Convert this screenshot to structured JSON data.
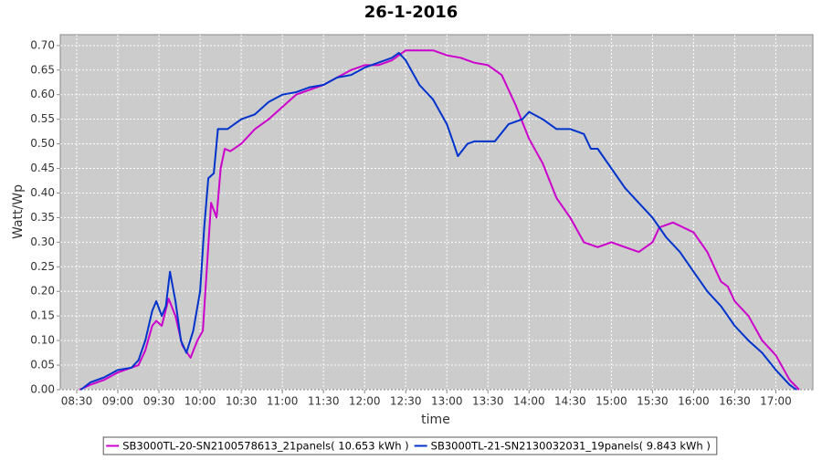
{
  "chart_data": {
    "type": "line",
    "title": "26-1-2016",
    "x_label": "time",
    "y_label": "Watt/Wp",
    "xlim": [
      "08:18",
      "17:27"
    ],
    "ylim": [
      0,
      0.722
    ],
    "xticks": [
      "08:30",
      "09:00",
      "09:30",
      "10:00",
      "10:30",
      "11:00",
      "11:30",
      "12:00",
      "12:30",
      "13:00",
      "13:30",
      "14:00",
      "14:30",
      "15:00",
      "15:30",
      "16:00",
      "16:30",
      "17:00"
    ],
    "yticks": [
      {
        "value": 0,
        "label": "0.00"
      },
      {
        "value": 0.05,
        "label": "0.05"
      },
      {
        "value": 0.1,
        "label": "0.10"
      },
      {
        "value": 0.15,
        "label": "0.15"
      },
      {
        "value": 0.2,
        "label": "0.20"
      },
      {
        "value": 0.25,
        "label": "0.25"
      },
      {
        "value": 0.3,
        "label": "0.30"
      },
      {
        "value": 0.35,
        "label": "0.35"
      },
      {
        "value": 0.4,
        "label": "0.40"
      },
      {
        "value": 0.45,
        "label": "0.45"
      },
      {
        "value": 0.5,
        "label": "0.50"
      },
      {
        "value": 0.55,
        "label": "0.55"
      },
      {
        "value": 0.6,
        "label": "0.60"
      },
      {
        "value": 0.65,
        "label": "0.65"
      },
      {
        "value": 0.7,
        "label": "0.70"
      }
    ],
    "grid": true,
    "series": [
      {
        "name": "SB3000TL-20-SN2100578613_21panels( 10.653 kWh )",
        "color": "#cc00cc",
        "x": [
          "08:32",
          "08:40",
          "08:50",
          "09:00",
          "09:10",
          "09:15",
          "09:20",
          "09:25",
          "09:28",
          "09:32",
          "09:37",
          "09:42",
          "09:47",
          "09:53",
          "09:58",
          "10:02",
          "10:05",
          "10:08",
          "10:12",
          "10:15",
          "10:18",
          "10:22",
          "10:30",
          "10:40",
          "10:50",
          "11:00",
          "11:10",
          "11:20",
          "11:30",
          "11:40",
          "11:50",
          "12:00",
          "12:10",
          "12:20",
          "12:30",
          "12:40",
          "12:50",
          "13:00",
          "13:10",
          "13:20",
          "13:30",
          "13:40",
          "13:50",
          "14:00",
          "14:10",
          "14:20",
          "14:30",
          "14:40",
          "14:50",
          "15:00",
          "15:10",
          "15:20",
          "15:30",
          "15:35",
          "15:45",
          "16:00",
          "16:10",
          "16:20",
          "16:25",
          "16:30",
          "16:40",
          "16:50",
          "17:00",
          "17:10",
          "17:17"
        ],
        "values": [
          0,
          0.01,
          0.02,
          0.035,
          0.045,
          0.05,
          0.08,
          0.13,
          0.14,
          0.13,
          0.185,
          0.15,
          0.09,
          0.065,
          0.1,
          0.12,
          0.25,
          0.38,
          0.35,
          0.45,
          0.49,
          0.485,
          0.5,
          0.53,
          0.55,
          0.575,
          0.6,
          0.61,
          0.62,
          0.635,
          0.65,
          0.66,
          0.66,
          0.67,
          0.69,
          0.69,
          0.69,
          0.68,
          0.675,
          0.665,
          0.66,
          0.64,
          0.58,
          0.51,
          0.46,
          0.39,
          0.35,
          0.3,
          0.29,
          0.3,
          0.29,
          0.28,
          0.3,
          0.33,
          0.34,
          0.32,
          0.28,
          0.22,
          0.21,
          0.18,
          0.15,
          0.1,
          0.07,
          0.02,
          0
        ]
      },
      {
        "name": "SB3000TL-21-SN2130032031_19panels( 9.843 kWh )",
        "color": "#0033cc",
        "x": [
          "08:33",
          "08:40",
          "08:50",
          "09:00",
          "09:10",
          "09:15",
          "09:20",
          "09:25",
          "09:28",
          "09:32",
          "09:35",
          "09:38",
          "09:42",
          "09:46",
          "09:50",
          "09:55",
          "10:00",
          "10:03",
          "10:06",
          "10:10",
          "10:13",
          "10:20",
          "10:30",
          "10:40",
          "10:50",
          "11:00",
          "11:10",
          "11:20",
          "11:30",
          "11:40",
          "11:50",
          "12:00",
          "12:10",
          "12:20",
          "12:25",
          "12:30",
          "12:40",
          "12:50",
          "13:00",
          "13:05",
          "13:08",
          "13:15",
          "13:20",
          "13:30",
          "13:35",
          "13:45",
          "13:55",
          "14:00",
          "14:10",
          "14:20",
          "14:30",
          "14:40",
          "14:45",
          "14:50",
          "15:00",
          "15:10",
          "15:20",
          "15:30",
          "15:40",
          "15:50",
          "16:00",
          "16:10",
          "16:20",
          "16:30",
          "16:40",
          "16:50",
          "17:00",
          "17:10",
          "17:15"
        ],
        "values": [
          0,
          0.015,
          0.025,
          0.04,
          0.045,
          0.06,
          0.1,
          0.16,
          0.18,
          0.15,
          0.17,
          0.24,
          0.18,
          0.1,
          0.075,
          0.12,
          0.2,
          0.33,
          0.43,
          0.44,
          0.53,
          0.53,
          0.55,
          0.56,
          0.585,
          0.6,
          0.605,
          0.615,
          0.62,
          0.635,
          0.64,
          0.655,
          0.665,
          0.675,
          0.685,
          0.67,
          0.62,
          0.59,
          0.54,
          0.5,
          0.475,
          0.5,
          0.505,
          0.505,
          0.505,
          0.54,
          0.55,
          0.565,
          0.55,
          0.53,
          0.53,
          0.52,
          0.49,
          0.49,
          0.45,
          0.41,
          0.38,
          0.35,
          0.31,
          0.28,
          0.24,
          0.2,
          0.17,
          0.13,
          0.1,
          0.075,
          0.04,
          0.01,
          0
        ]
      }
    ]
  }
}
